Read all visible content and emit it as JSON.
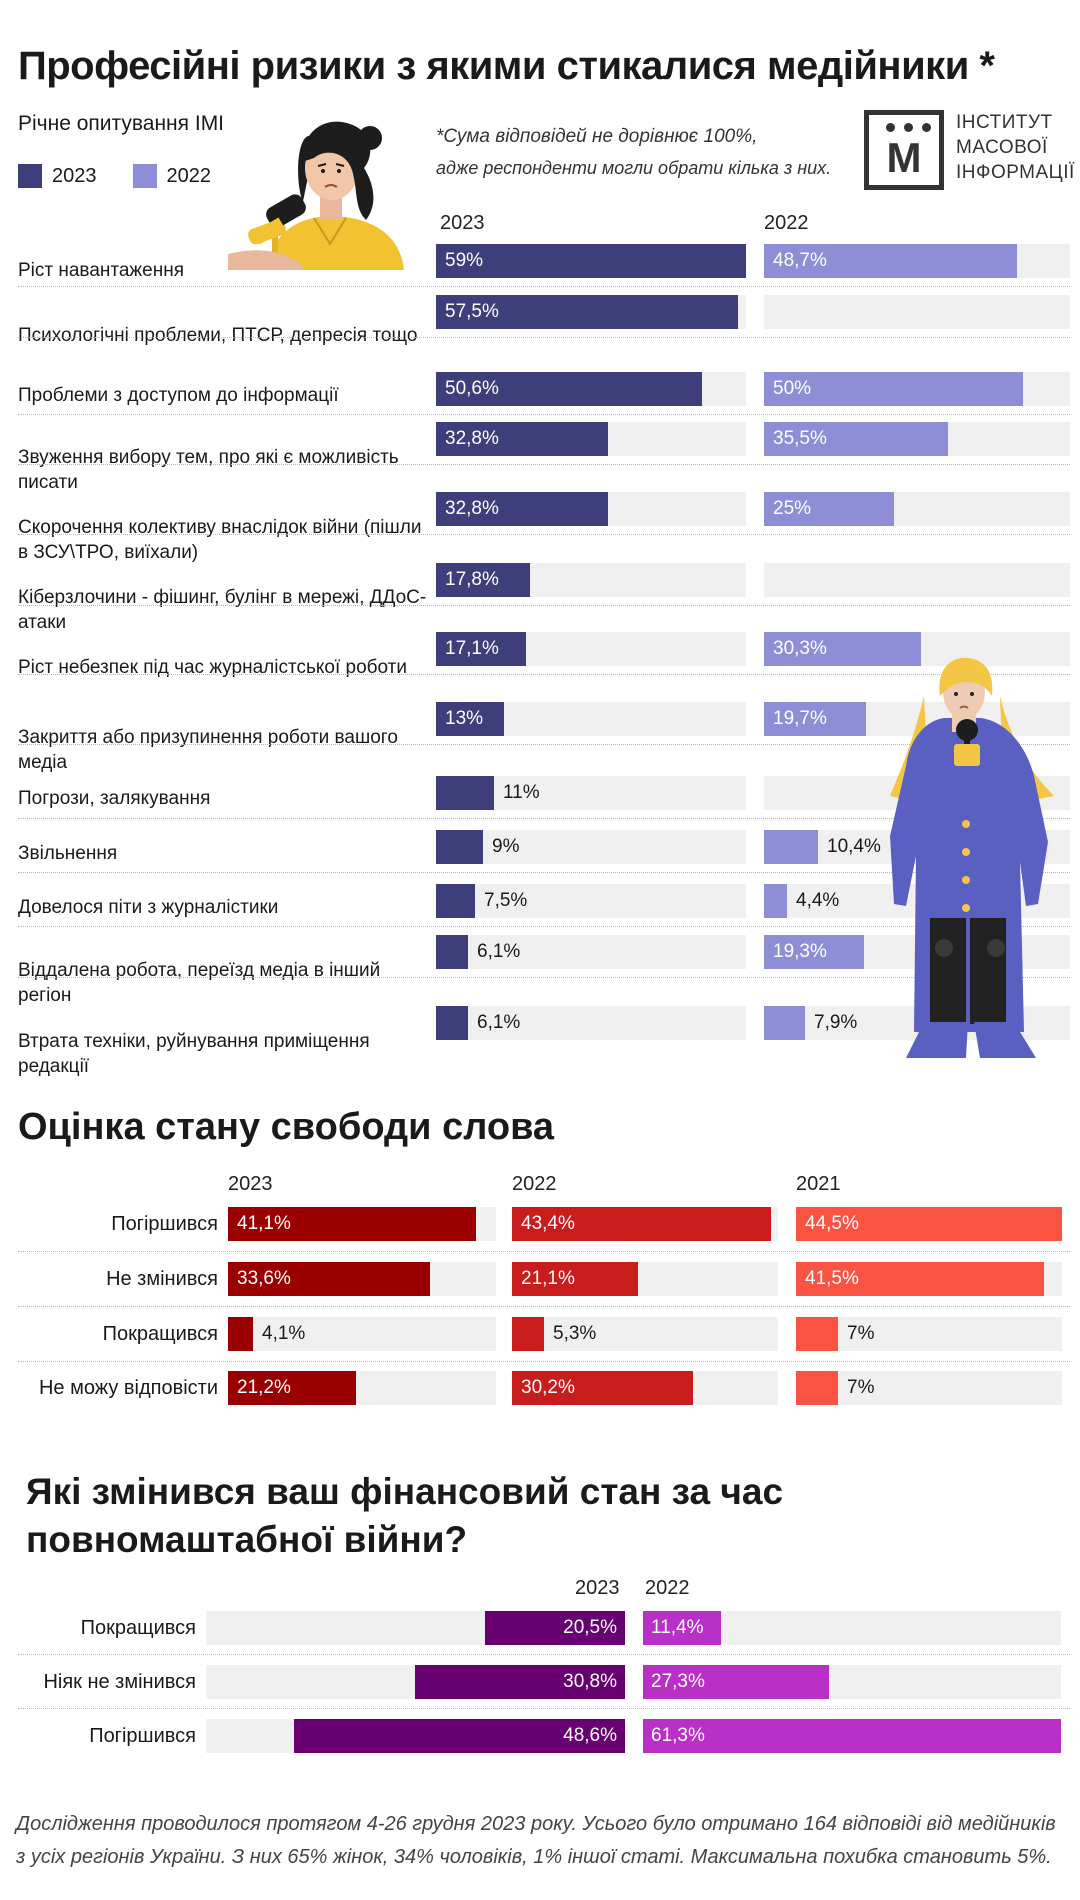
{
  "header": {
    "title": "Професійні ризики з якими стикалися медійники *",
    "subtitle": "Річне опитування IMI",
    "note_line1": "*Сума відповідей не дорівнює 100%,",
    "note_line2": "адже респонденти могли обрати кілька з них.",
    "logo_letter": "М",
    "logo_text": [
      "ІНСТИТУТ",
      "МАСОВОЇ",
      "ІНФОРМАЦІЇ"
    ]
  },
  "icons": {
    "woman_top": "journalist-at-microphone-illustration",
    "woman_right": "reporter-with-microphone-illustration",
    "logo": "imi-logo"
  },
  "colors": {
    "c2023": "#3e3e7a",
    "c2022": "#8e8ed6",
    "freedom_2023": "#9b0000",
    "freedom_2022": "#c91c1c",
    "freedom_2021": "#f95343",
    "finance_2023": "#670071",
    "finance_2022": "#b830c6",
    "track": "#f0f0f0"
  },
  "chart_data": [
    {
      "type": "bar",
      "title": "Професійні ризики з якими стикалися медійники *",
      "categories": [
        "Ріст навантаження",
        "Психологічні проблеми, ПТСР, депресія тощо",
        "Проблеми з доступом до інформації",
        "Звуження вибору тем, про які є можливість писати",
        "Скорочення колективу внаслідок війни (пішли в ЗСУ\\ТРО, виїхали)",
        "Кіберзлочини - фішинг, булінг в мережі, ДДоС-атаки",
        "Ріст небезпек під час журналістської роботи",
        "Закриття або призупинення роботи вашого медіа",
        "Погрози, залякування",
        "Звільнення",
        "Довелося піти з журналістики",
        "Віддалена робота, переїзд медіа в інший регіон",
        "Втрата техніки, руйнування приміщення редакції"
      ],
      "series": [
        {
          "name": "2023",
          "values": [
            59,
            57.5,
            50.6,
            32.8,
            32.8,
            17.8,
            17.1,
            13,
            11,
            9,
            7.5,
            6.1,
            6.1
          ],
          "labels": [
            "59%",
            "57,5%",
            "50,6%",
            "32,8%",
            "32,8%",
            "17,8%",
            "17,1%",
            "13%",
            "11%",
            "9%",
            "7,5%",
            "6,1%",
            "6,1%"
          ]
        },
        {
          "name": "2022",
          "values": [
            48.7,
            null,
            50,
            35.5,
            25,
            null,
            30.3,
            19.7,
            null,
            10.4,
            4.4,
            19.3,
            7.9
          ],
          "labels": [
            "48,7%",
            "",
            "50%",
            "35,5%",
            "25%",
            "",
            "30,3%",
            "19,7%",
            "",
            "10,4%",
            "4,4%",
            "19,3%",
            "7,9%"
          ]
        }
      ],
      "xlim": [
        0,
        59
      ]
    },
    {
      "type": "bar",
      "title": "Оцінка стану свободи слова",
      "categories": [
        "Погіршився",
        "Не змінився",
        "Покращився",
        "Не можу відповісти"
      ],
      "series": [
        {
          "name": "2023",
          "values": [
            41.1,
            33.6,
            4.1,
            21.2
          ],
          "labels": [
            "41,1%",
            "33,6%",
            "4,1%",
            "21,2%"
          ]
        },
        {
          "name": "2022",
          "values": [
            43.4,
            21.1,
            5.3,
            30.2
          ],
          "labels": [
            "43,4%",
            "21,1%",
            "5,3%",
            "30,2%"
          ]
        },
        {
          "name": "2021",
          "values": [
            44.5,
            41.5,
            7,
            7
          ],
          "labels": [
            "44,5%",
            "41,5%",
            "7%",
            "7%"
          ]
        }
      ],
      "xlim": [
        0,
        44.5
      ]
    },
    {
      "type": "bar",
      "title": "Які змінився ваш фінансовий стан за час повномаштабної війни?",
      "categories": [
        "Покращився",
        "Ніяк не змінився",
        "Погіршився"
      ],
      "series": [
        {
          "name": "2023",
          "values": [
            20.5,
            30.8,
            48.6
          ],
          "labels": [
            "20,5%",
            "30,8%",
            "48,6%"
          ]
        },
        {
          "name": "2022",
          "values": [
            11.4,
            27.3,
            61.3
          ],
          "labels": [
            "11,4%",
            "27,3%",
            "61,3%"
          ]
        }
      ],
      "xlim": [
        0,
        61.3
      ]
    }
  ],
  "footnote": "Дослідження проводилося протягом 4-26 грудня 2023 року. Усього було отримано 164 відповіді від медійників з усіх регіонів України. З них 65% жінок, 34% чоловіків, 1% іншої статі. Максимальна похибка становить 5%."
}
